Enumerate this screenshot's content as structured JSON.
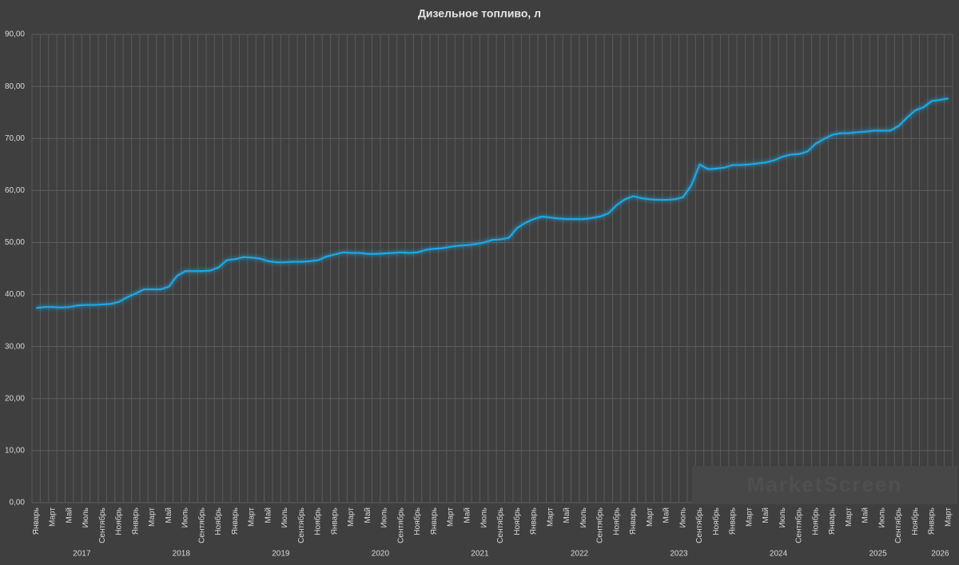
{
  "chart_data": {
    "type": "line",
    "title": "Дизельное топливо, л",
    "watermark": "MarketScreen",
    "categories": [
      "Январь",
      null,
      "Март",
      null,
      "Май",
      null,
      "Июль",
      null,
      "Сентябрь",
      null,
      "Ноябрь",
      null,
      "Январь",
      null,
      "Март",
      null,
      "Май",
      null,
      "Июль",
      null,
      "Сентябрь",
      null,
      "Ноябрь",
      null,
      "Январь",
      null,
      "Март",
      null,
      "Май",
      null,
      "Июль",
      null,
      "Сентябрь",
      null,
      "Ноябрь",
      null,
      "Январь",
      null,
      "Март",
      null,
      "Май",
      null,
      "Июль",
      null,
      "Сентябрь",
      null,
      "Ноябрь",
      null,
      "Январь",
      null,
      "Март",
      null,
      "Май",
      null,
      "Июль",
      null,
      "Сентябрь",
      null,
      "Ноябрь",
      null,
      "Январь",
      null,
      "Март",
      null,
      "Май",
      null,
      "Июль",
      null,
      "Сентябрь",
      null,
      "Ноябрь",
      null,
      "Январь",
      null,
      "Март",
      null,
      "Май",
      null,
      "Июль",
      null,
      "Сентябрь",
      null,
      "Ноябрь",
      null,
      "Январь",
      null,
      "Март",
      null,
      "Май",
      null,
      "Июль",
      null,
      "Сентябрь",
      null,
      "Ноябрь",
      null,
      "Январь",
      null,
      "Март",
      null,
      "Май",
      null,
      "Июль",
      null,
      "Сентябрь",
      null,
      "Ноябрь",
      null,
      "Январь",
      null,
      "Март"
    ],
    "years": [
      "2017",
      "2018",
      "2019",
      "2020",
      "2021",
      "2022",
      "2023",
      "2024",
      "2025",
      "2026"
    ],
    "series": [
      {
        "name": "Дизельное топливо",
        "color": "#1ea9e6",
        "values": [
          37.4,
          37.6,
          37.6,
          37.5,
          37.6,
          37.9,
          38.0,
          38.0,
          38.1,
          38.2,
          38.6,
          39.5,
          40.2,
          41.0,
          41.0,
          41.0,
          41.5,
          43.6,
          44.5,
          44.5,
          44.5,
          44.6,
          45.2,
          46.6,
          46.8,
          47.2,
          47.1,
          46.9,
          46.4,
          46.2,
          46.2,
          46.3,
          46.3,
          46.4,
          46.6,
          47.3,
          47.7,
          48.1,
          48.0,
          48.0,
          47.8,
          47.8,
          47.9,
          48.0,
          48.1,
          48.0,
          48.1,
          48.6,
          48.8,
          48.9,
          49.2,
          49.4,
          49.5,
          49.7,
          50.0,
          50.5,
          50.6,
          50.9,
          52.8,
          53.8,
          54.5,
          55.0,
          54.8,
          54.6,
          54.5,
          54.5,
          54.5,
          54.7,
          55.0,
          55.6,
          57.2,
          58.3,
          58.9,
          58.5,
          58.3,
          58.2,
          58.2,
          58.3,
          58.7,
          61.0,
          65.0,
          64.1,
          64.2,
          64.4,
          64.9,
          64.9,
          65.0,
          65.2,
          65.4,
          65.8,
          66.5,
          66.9,
          67.0,
          67.5,
          69.0,
          69.9,
          70.7,
          71.0,
          71.0,
          71.2,
          71.3,
          71.5,
          71.5,
          71.5,
          72.4,
          74.0,
          75.4,
          76.0,
          77.2,
          77.4,
          77.7
        ]
      }
    ],
    "ylim": [
      0,
      90
    ],
    "yticks": [
      {
        "value": 0,
        "label": "0,00"
      },
      {
        "value": 10,
        "label": "10,00"
      },
      {
        "value": 20,
        "label": "20,00"
      },
      {
        "value": 30,
        "label": "30,00"
      },
      {
        "value": 40,
        "label": "40,00"
      },
      {
        "value": 50,
        "label": "50,00"
      },
      {
        "value": 60,
        "label": "60,00"
      },
      {
        "value": 70,
        "label": "70,00"
      },
      {
        "value": 80,
        "label": "80,00"
      },
      {
        "value": 90,
        "label": "90,00"
      }
    ],
    "grid": true
  }
}
